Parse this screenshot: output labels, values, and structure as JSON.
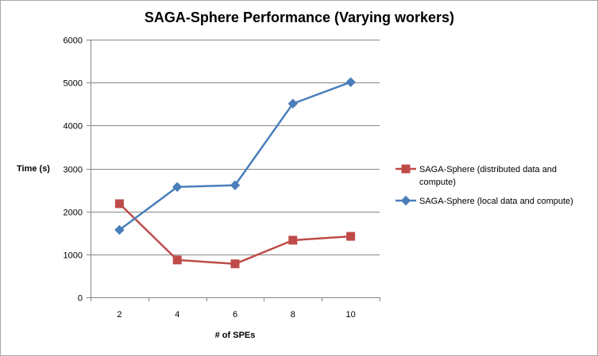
{
  "chart_data": {
    "type": "line",
    "title": "SAGA-Sphere Performance (Varying workers)",
    "xlabel": "# of SPEs",
    "ylabel": "Time (s)",
    "x": [
      2,
      4,
      6,
      8,
      10
    ],
    "ylim": [
      0,
      6000
    ],
    "yticks": [
      0,
      1000,
      2000,
      3000,
      4000,
      5000,
      6000
    ],
    "grid": true,
    "legend_position": "right",
    "series": [
      {
        "name": "SAGA-Sphere (distributed data and compute)",
        "values": [
          2180,
          870,
          780,
          1330,
          1420
        ],
        "color": "#be4b48",
        "marker": "square"
      },
      {
        "name": "SAGA-Sphere (local data and compute)",
        "values": [
          1570,
          2570,
          2610,
          4510,
          5010
        ],
        "color": "#4a7ebb",
        "marker": "diamond"
      }
    ]
  }
}
